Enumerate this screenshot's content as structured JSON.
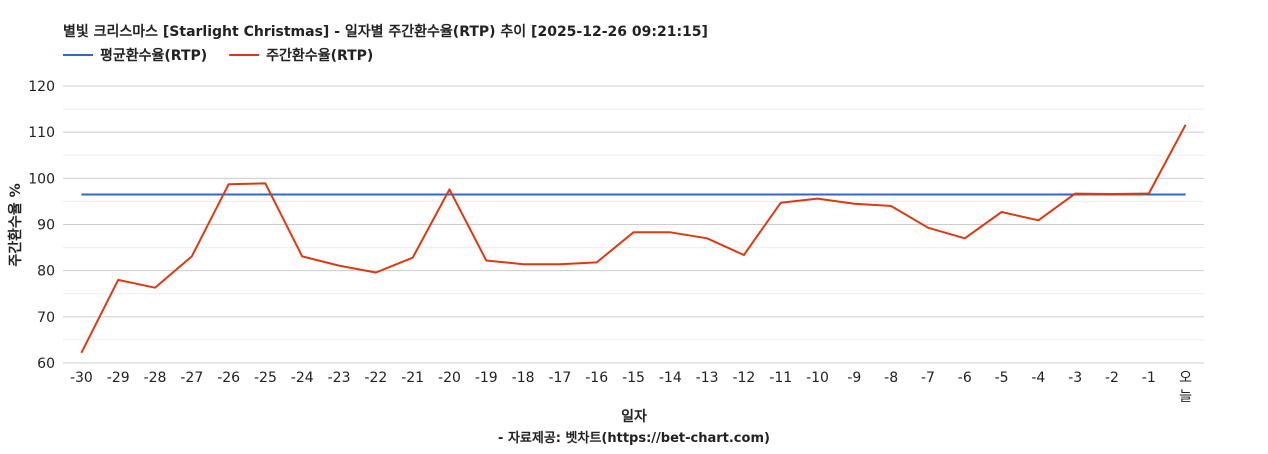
{
  "chart_data": {
    "type": "line",
    "title": "별빛 크리스마스 [Starlight Christmas] - 일자별 주간환수율(RTP) 추이 [2025-12-26 09:21:15]",
    "xlabel": "일자",
    "ylabel": "주간환수율 %",
    "credit": "- 자료제공: 벳차트(https://bet-chart.com)",
    "ylim": [
      60,
      120
    ],
    "yticks": [
      "60",
      "70",
      "80",
      "90",
      "100",
      "110",
      "120"
    ],
    "grid": true,
    "legend_position": "top-left",
    "categories": [
      "-30",
      "-29",
      "-28",
      "-27",
      "-26",
      "-25",
      "-24",
      "-23",
      "-22",
      "-21",
      "-20",
      "-19",
      "-18",
      "-17",
      "-16",
      "-15",
      "-14",
      "-13",
      "-12",
      "-11",
      "-10",
      "-9",
      "-8",
      "-7",
      "-6",
      "-5",
      "-4",
      "-3",
      "-2",
      "-1",
      "오늘"
    ],
    "series": [
      {
        "name": "평균환수율(RTP)",
        "color": "#3366cc",
        "values": [
          96.5,
          96.5,
          96.5,
          96.5,
          96.5,
          96.5,
          96.5,
          96.5,
          96.5,
          96.5,
          96.5,
          96.5,
          96.5,
          96.5,
          96.5,
          96.5,
          96.5,
          96.5,
          96.5,
          96.5,
          96.5,
          96.5,
          96.5,
          96.5,
          96.5,
          96.5,
          96.5,
          96.5,
          96.5,
          96.5,
          96.5
        ]
      },
      {
        "name": "주간환수율(RTP)",
        "color": "#dc3912",
        "values": [
          62.2,
          78.0,
          76.3,
          83.1,
          98.7,
          98.9,
          83.1,
          81.1,
          79.6,
          82.8,
          97.6,
          82.2,
          81.4,
          81.4,
          81.8,
          88.3,
          88.3,
          87.0,
          83.4,
          94.7,
          95.6,
          94.5,
          94.0,
          89.3,
          87.0,
          92.7,
          90.9,
          96.7,
          96.6,
          96.7,
          111.6
        ]
      }
    ]
  }
}
